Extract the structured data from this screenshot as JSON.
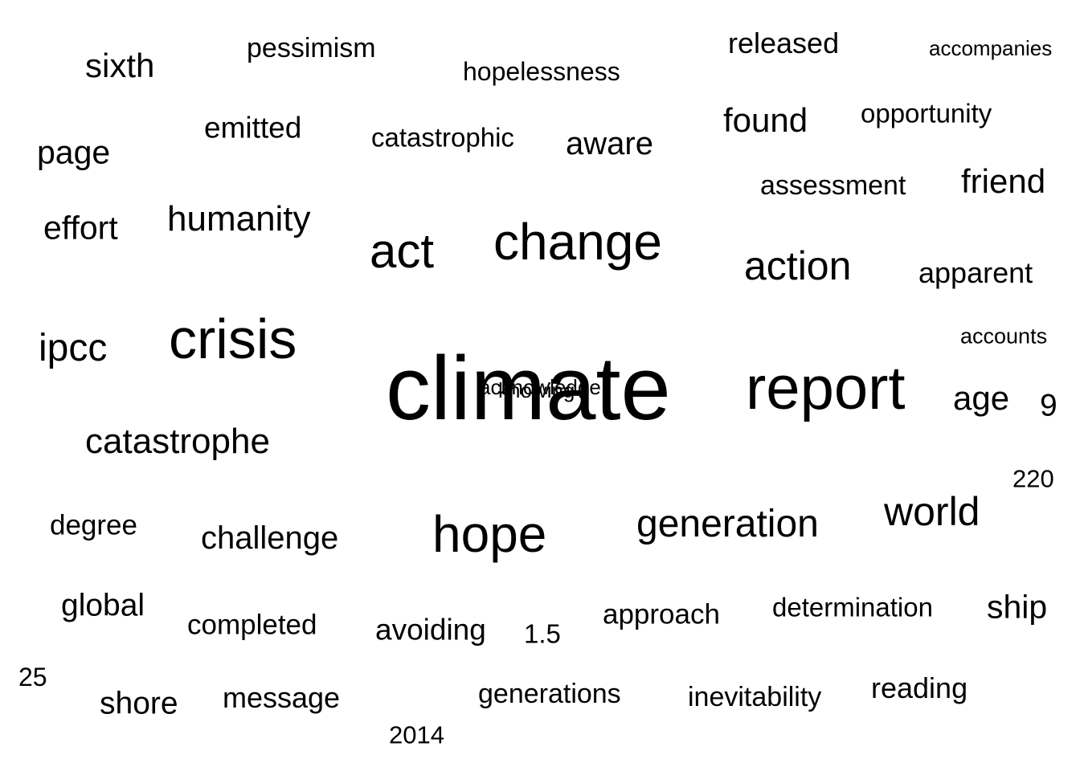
{
  "text_color": "#000000",
  "background_color": "#ffffff",
  "words": [
    {
      "text": "climate",
      "weight": 100
    },
    {
      "text": "report",
      "weight": 71
    },
    {
      "text": "crisis",
      "weight": 65
    },
    {
      "text": "change",
      "weight": 61
    },
    {
      "text": "hope",
      "weight": 61
    },
    {
      "text": "act",
      "weight": 55
    },
    {
      "text": "action",
      "weight": 49
    },
    {
      "text": "world",
      "weight": 49
    },
    {
      "text": "generation",
      "weight": 48
    },
    {
      "text": "ipcc",
      "weight": 48
    },
    {
      "text": "catastrophe",
      "weight": 45
    },
    {
      "text": "humanity",
      "weight": 45
    },
    {
      "text": "age",
      "weight": 43
    },
    {
      "text": "sixth",
      "weight": 43
    },
    {
      "text": "friend",
      "weight": 43
    },
    {
      "text": "found",
      "weight": 43
    },
    {
      "text": "page",
      "weight": 42
    },
    {
      "text": "effort",
      "weight": 42
    },
    {
      "text": "ship",
      "weight": 42
    },
    {
      "text": "challenge",
      "weight": 41
    },
    {
      "text": "aware",
      "weight": 41
    },
    {
      "text": "global",
      "weight": 40
    },
    {
      "text": "shore",
      "weight": 40
    },
    {
      "text": "9",
      "weight": 40
    },
    {
      "text": "emitted",
      "weight": 38
    },
    {
      "text": "avoiding",
      "weight": 38
    },
    {
      "text": "released",
      "weight": 37
    },
    {
      "text": "message",
      "weight": 37
    },
    {
      "text": "apparent",
      "weight": 37
    },
    {
      "text": "reading",
      "weight": 37
    },
    {
      "text": "completed",
      "weight": 36
    },
    {
      "text": "approach",
      "weight": 36
    },
    {
      "text": "degree",
      "weight": 36
    },
    {
      "text": "pessimism",
      "weight": 35
    },
    {
      "text": "inevitability",
      "weight": 35
    },
    {
      "text": "assessment",
      "weight": 35
    },
    {
      "text": "generations",
      "weight": 35
    },
    {
      "text": "determination",
      "weight": 34
    },
    {
      "text": "catastrophic",
      "weight": 34
    },
    {
      "text": "opportunity",
      "weight": 34
    },
    {
      "text": "1.5",
      "weight": 34
    },
    {
      "text": "hopelessness",
      "weight": 33
    },
    {
      "text": "25",
      "weight": 33
    },
    {
      "text": "2014",
      "weight": 32
    },
    {
      "text": "220",
      "weight": 32
    },
    {
      "text": "accounts",
      "weight": 28
    },
    {
      "text": "accompanies",
      "weight": 27
    },
    {
      "text": "acknowledge",
      "weight": 27
    },
    {
      "text": "knowing",
      "weight": 27
    }
  ]
}
